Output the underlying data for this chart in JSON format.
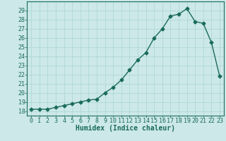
{
  "x": [
    0,
    1,
    2,
    3,
    4,
    5,
    6,
    7,
    8,
    9,
    10,
    11,
    12,
    13,
    14,
    15,
    16,
    17,
    18,
    19,
    20,
    21,
    22,
    23
  ],
  "y": [
    18.2,
    18.2,
    18.2,
    18.4,
    18.6,
    18.8,
    19.0,
    19.2,
    19.3,
    20.0,
    20.6,
    21.4,
    22.5,
    23.6,
    24.4,
    26.0,
    27.0,
    28.4,
    28.6,
    29.2,
    27.8,
    27.6,
    25.5,
    21.8
  ],
  "line_color": "#1a6b5a",
  "bg_color": "#cce8e8",
  "grid_color": "#aad4d4",
  "xlabel": "Humidex (Indice chaleur)",
  "xlim": [
    -0.5,
    23.5
  ],
  "ylim": [
    17.5,
    30.0
  ],
  "yticks": [
    18,
    19,
    20,
    21,
    22,
    23,
    24,
    25,
    26,
    27,
    28,
    29
  ],
  "xticks": [
    0,
    1,
    2,
    3,
    4,
    5,
    6,
    7,
    8,
    9,
    10,
    11,
    12,
    13,
    14,
    15,
    16,
    17,
    18,
    19,
    20,
    21,
    22,
    23
  ],
  "marker_size": 2.5,
  "line_width": 1.0,
  "xlabel_fontsize": 7,
  "tick_fontsize": 6
}
